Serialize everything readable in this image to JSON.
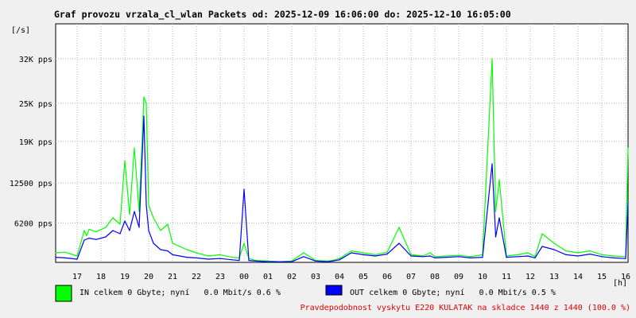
{
  "chart_data": {
    "type": "line",
    "title": "Graf provozu vrzala_cl_wlan Packets od: 2025-12-09 16:06:00 do: 2025-12-10 16:05:00",
    "ylabel": "[/s]",
    "xlabel": "[h]",
    "ylim": [
      0,
      37500
    ],
    "grid": true,
    "y_ticks": [
      {
        "value": 6200,
        "label": "6200 pps"
      },
      {
        "value": 12500,
        "label": "12500 pps"
      },
      {
        "value": 19000,
        "label": "19K pps"
      },
      {
        "value": 25000,
        "label": "25K pps"
      },
      {
        "value": 32000,
        "label": "32K pps"
      }
    ],
    "x_ticks": [
      "17",
      "18",
      "19",
      "20",
      "21",
      "22",
      "23",
      "00",
      "01",
      "02",
      "03",
      "04",
      "05",
      "06",
      "07",
      "08",
      "09",
      "10",
      "11",
      "12",
      "13",
      "14",
      "15",
      "16"
    ],
    "series": [
      {
        "name": "IN",
        "color": "#00ff00",
        "x": [
          16.1,
          16.5,
          17.0,
          17.3,
          17.4,
          17.5,
          17.8,
          18.2,
          18.5,
          18.8,
          19.0,
          19.2,
          19.4,
          19.6,
          19.8,
          19.9,
          20.0,
          20.2,
          20.5,
          20.8,
          21.0,
          21.3,
          21.6,
          22.0,
          22.5,
          23.0,
          23.5,
          23.8,
          24.0,
          24.2,
          24.5,
          25.0,
          25.5,
          26.0,
          26.5,
          27.0,
          27.5,
          27.7,
          28.0,
          28.5,
          29.0,
          29.5,
          30.0,
          30.5,
          31.0,
          31.5,
          31.8,
          32.0,
          32.5,
          33.0,
          33.5,
          34.0,
          34.4,
          34.55,
          34.7,
          35.0,
          35.5,
          35.9,
          36.2,
          36.5,
          37.0,
          37.5,
          38.0,
          38.5,
          39.0,
          39.5,
          40.0,
          40.1
        ],
        "y": [
          1500,
          1600,
          1000,
          5000,
          4200,
          5200,
          4800,
          5500,
          7000,
          6000,
          16000,
          7500,
          18000,
          8000,
          26000,
          25000,
          9000,
          7000,
          5000,
          6000,
          3000,
          2500,
          2000,
          1500,
          1000,
          1200,
          800,
          700,
          3000,
          600,
          300,
          200,
          100,
          200,
          1500,
          300,
          200,
          300,
          600,
          1800,
          1500,
          1200,
          1600,
          5500,
          1200,
          1000,
          1500,
          900,
          1000,
          1100,
          900,
          1200,
          32000,
          8000,
          13000,
          1000,
          1200,
          1500,
          900,
          4500,
          3000,
          1800,
          1500,
          1800,
          1200,
          1000,
          900,
          18000
        ]
      },
      {
        "name": "OUT",
        "color": "#0000ff",
        "x": [
          16.1,
          16.5,
          17.0,
          17.3,
          17.5,
          17.8,
          18.2,
          18.5,
          18.8,
          19.0,
          19.2,
          19.4,
          19.6,
          19.8,
          19.9,
          20.0,
          20.2,
          20.5,
          20.8,
          21.0,
          21.3,
          21.6,
          22.0,
          22.5,
          23.0,
          23.5,
          23.8,
          24.0,
          24.2,
          24.5,
          25.0,
          25.5,
          26.0,
          26.5,
          27.0,
          27.5,
          27.7,
          28.0,
          28.5,
          29.0,
          29.5,
          30.0,
          30.5,
          31.0,
          31.5,
          31.8,
          32.0,
          32.5,
          33.0,
          33.5,
          34.0,
          34.4,
          34.55,
          34.7,
          35.0,
          35.5,
          35.9,
          36.2,
          36.5,
          37.0,
          37.5,
          38.0,
          38.5,
          39.0,
          39.5,
          40.0,
          40.1
        ],
        "y": [
          800,
          700,
          500,
          3500,
          3800,
          3600,
          4000,
          5000,
          4500,
          6500,
          5000,
          8000,
          5500,
          23000,
          9000,
          5000,
          3000,
          2000,
          1800,
          1200,
          1000,
          800,
          700,
          500,
          600,
          400,
          300,
          11500,
          300,
          200,
          100,
          100,
          100,
          900,
          200,
          100,
          200,
          400,
          1500,
          1200,
          1000,
          1300,
          3000,
          1000,
          900,
          1000,
          700,
          800,
          900,
          700,
          800,
          15500,
          4000,
          7000,
          800,
          900,
          1000,
          700,
          2500,
          2000,
          1200,
          1000,
          1300,
          900,
          700,
          600,
          9500
        ]
      }
    ],
    "legend": [
      {
        "color": "#00ff00",
        "text": "IN celkem 0 Gbyte; nyní   0.0 Mbit/s 0.6 %"
      },
      {
        "color": "#0000ff",
        "text": "OUT celkem 0 Gbyte; nyní   0.0 Mbit/s 0.5 %"
      }
    ],
    "note": "Pravdepodobnost vyskytu E220 KULATAK na skladce 1440 z 1440 (100.0 %)"
  }
}
